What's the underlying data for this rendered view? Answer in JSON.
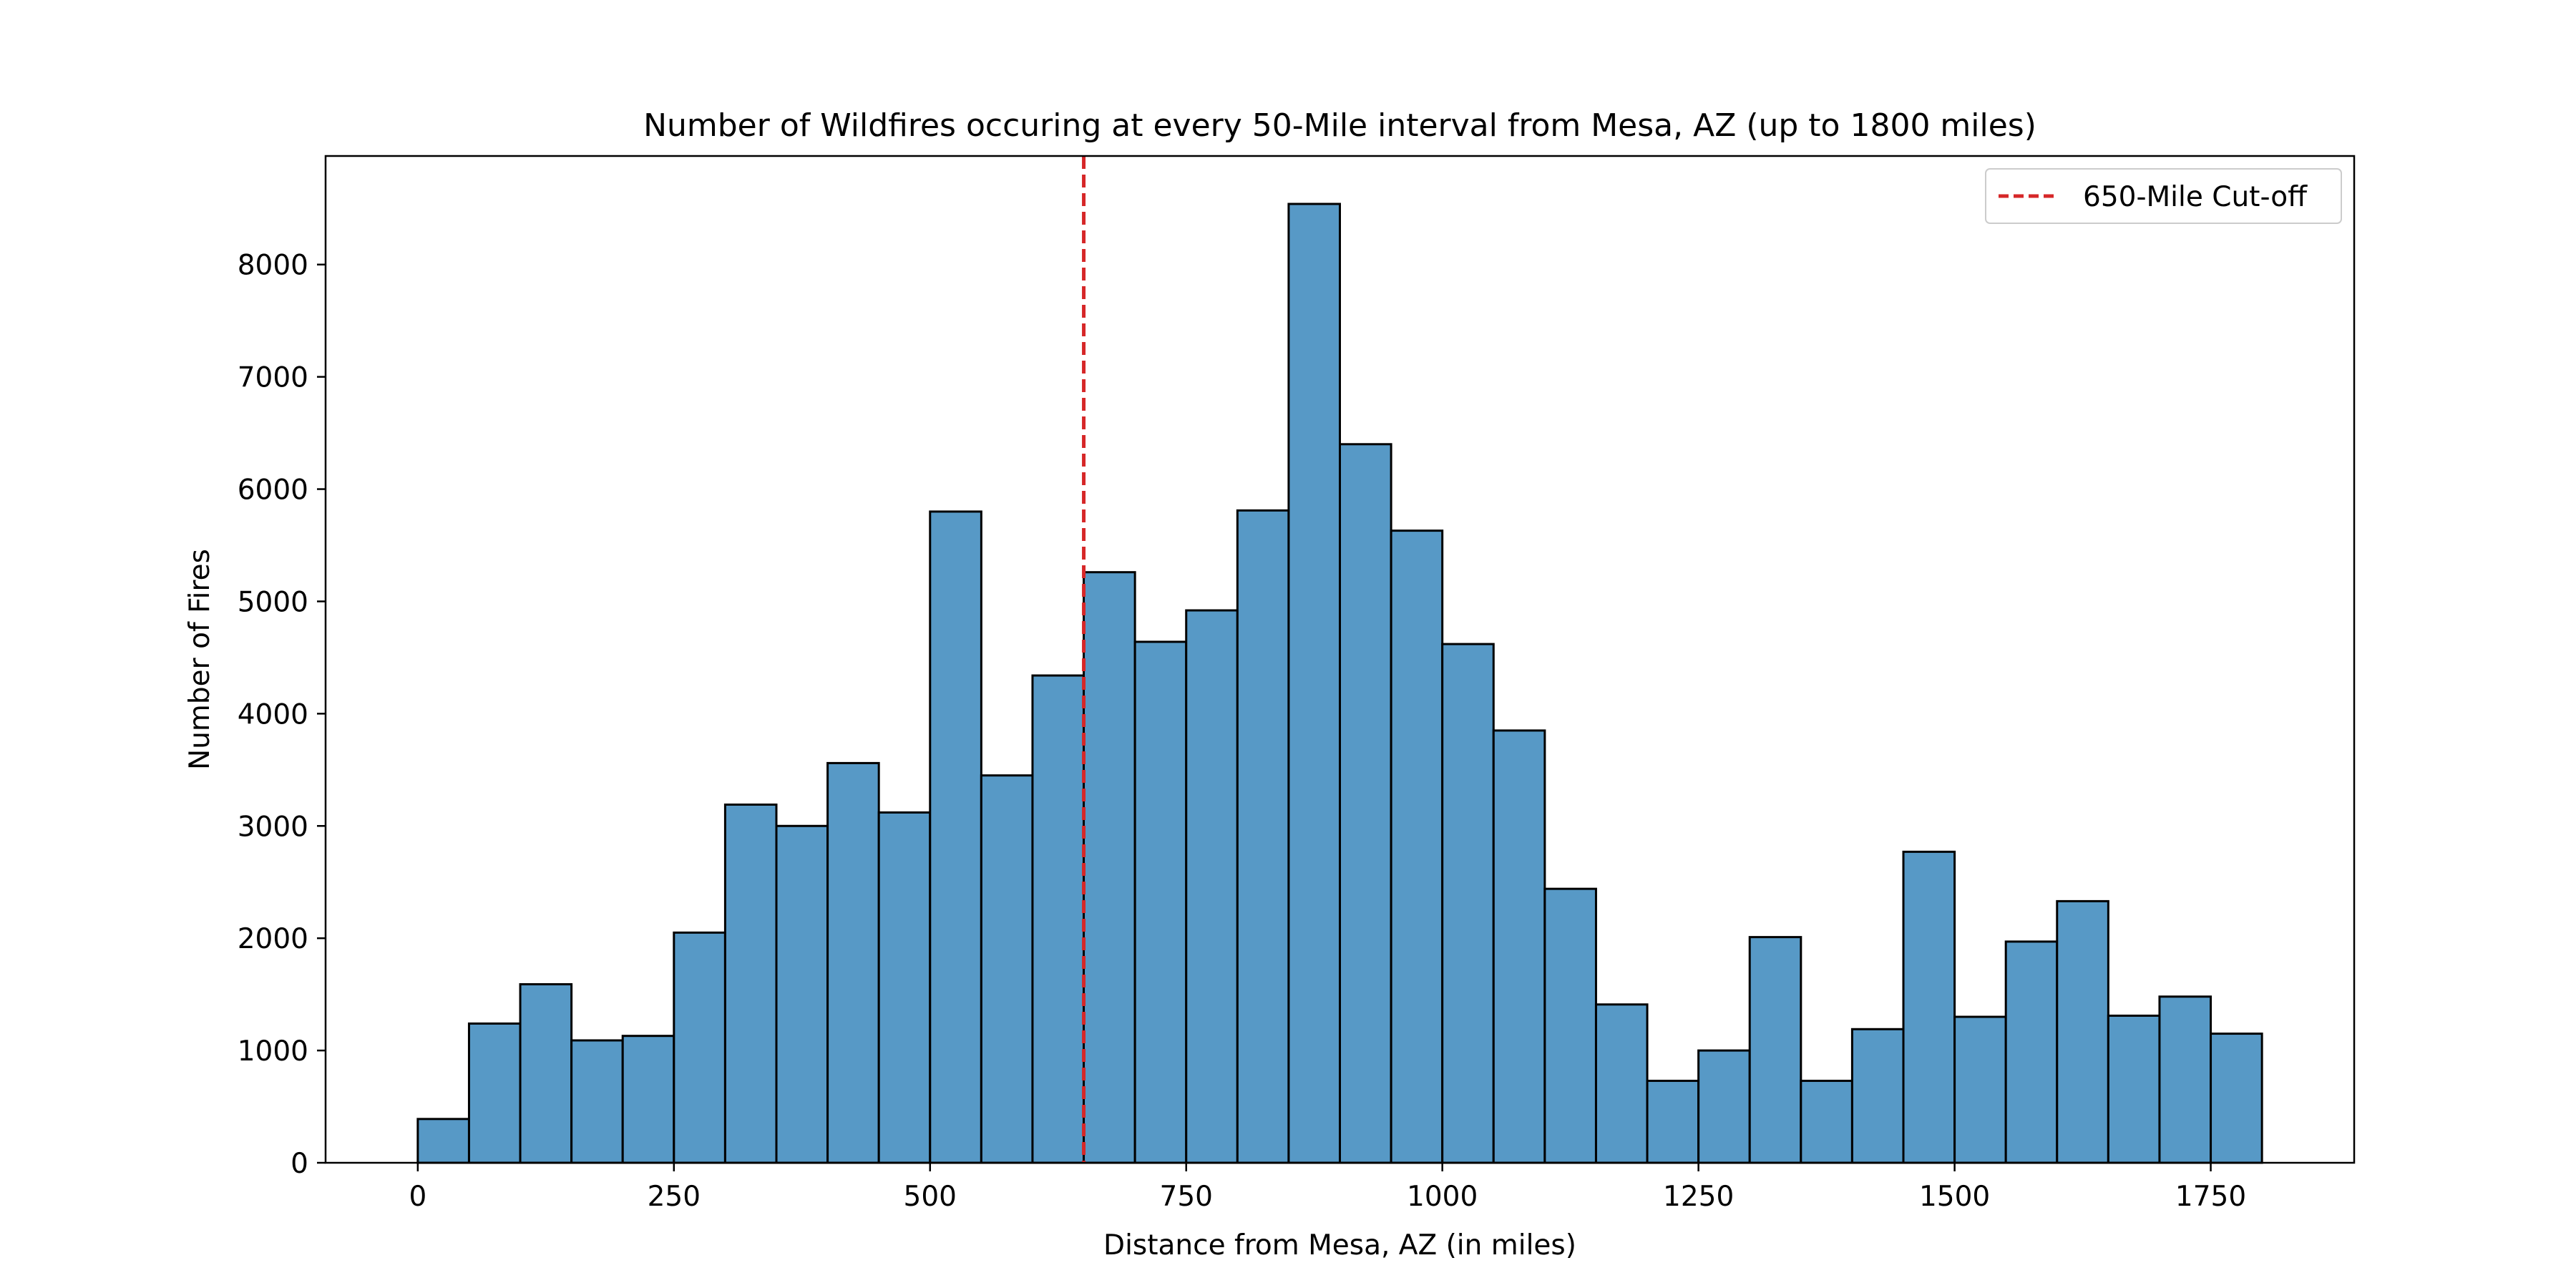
{
  "chart_data": {
    "type": "bar",
    "title": "Number of Wildfires occuring at every 50-Mile interval from Mesa, AZ (up to 1800 miles)",
    "xlabel": "Distance from Mesa, AZ (in miles)",
    "ylabel": "Number of Fires",
    "bin_width": 50,
    "bin_starts": [
      0,
      50,
      100,
      150,
      200,
      250,
      300,
      350,
      400,
      450,
      500,
      550,
      600,
      650,
      700,
      750,
      800,
      850,
      900,
      950,
      1000,
      1050,
      1100,
      1150,
      1200,
      1250,
      1300,
      1350,
      1400,
      1450,
      1500,
      1550,
      1600,
      1650,
      1700,
      1750
    ],
    "values": [
      390,
      1240,
      1590,
      1090,
      1130,
      2050,
      3190,
      3000,
      3560,
      3120,
      5800,
      3450,
      4340,
      5260,
      4640,
      4920,
      5810,
      8540,
      6400,
      5630,
      4620,
      3850,
      2440,
      1410,
      730,
      1000,
      2010,
      730,
      1190,
      2770,
      1300,
      1970,
      2330,
      1310,
      1480,
      1150
    ],
    "xlim": [
      -90,
      1890
    ],
    "ylim": [
      0,
      8967
    ],
    "xticks": [
      0,
      250,
      500,
      750,
      1000,
      1250,
      1500,
      1750
    ],
    "yticks": [
      0,
      1000,
      2000,
      3000,
      4000,
      5000,
      6000,
      7000,
      8000
    ],
    "bar_color": "#5799c6",
    "bar_edge_color": "#000000",
    "cutoff": {
      "x": 650,
      "label": "650-Mile Cut-off",
      "color": "#d62728",
      "style": "dashed"
    },
    "legend_position": "top-right",
    "grid": false
  }
}
